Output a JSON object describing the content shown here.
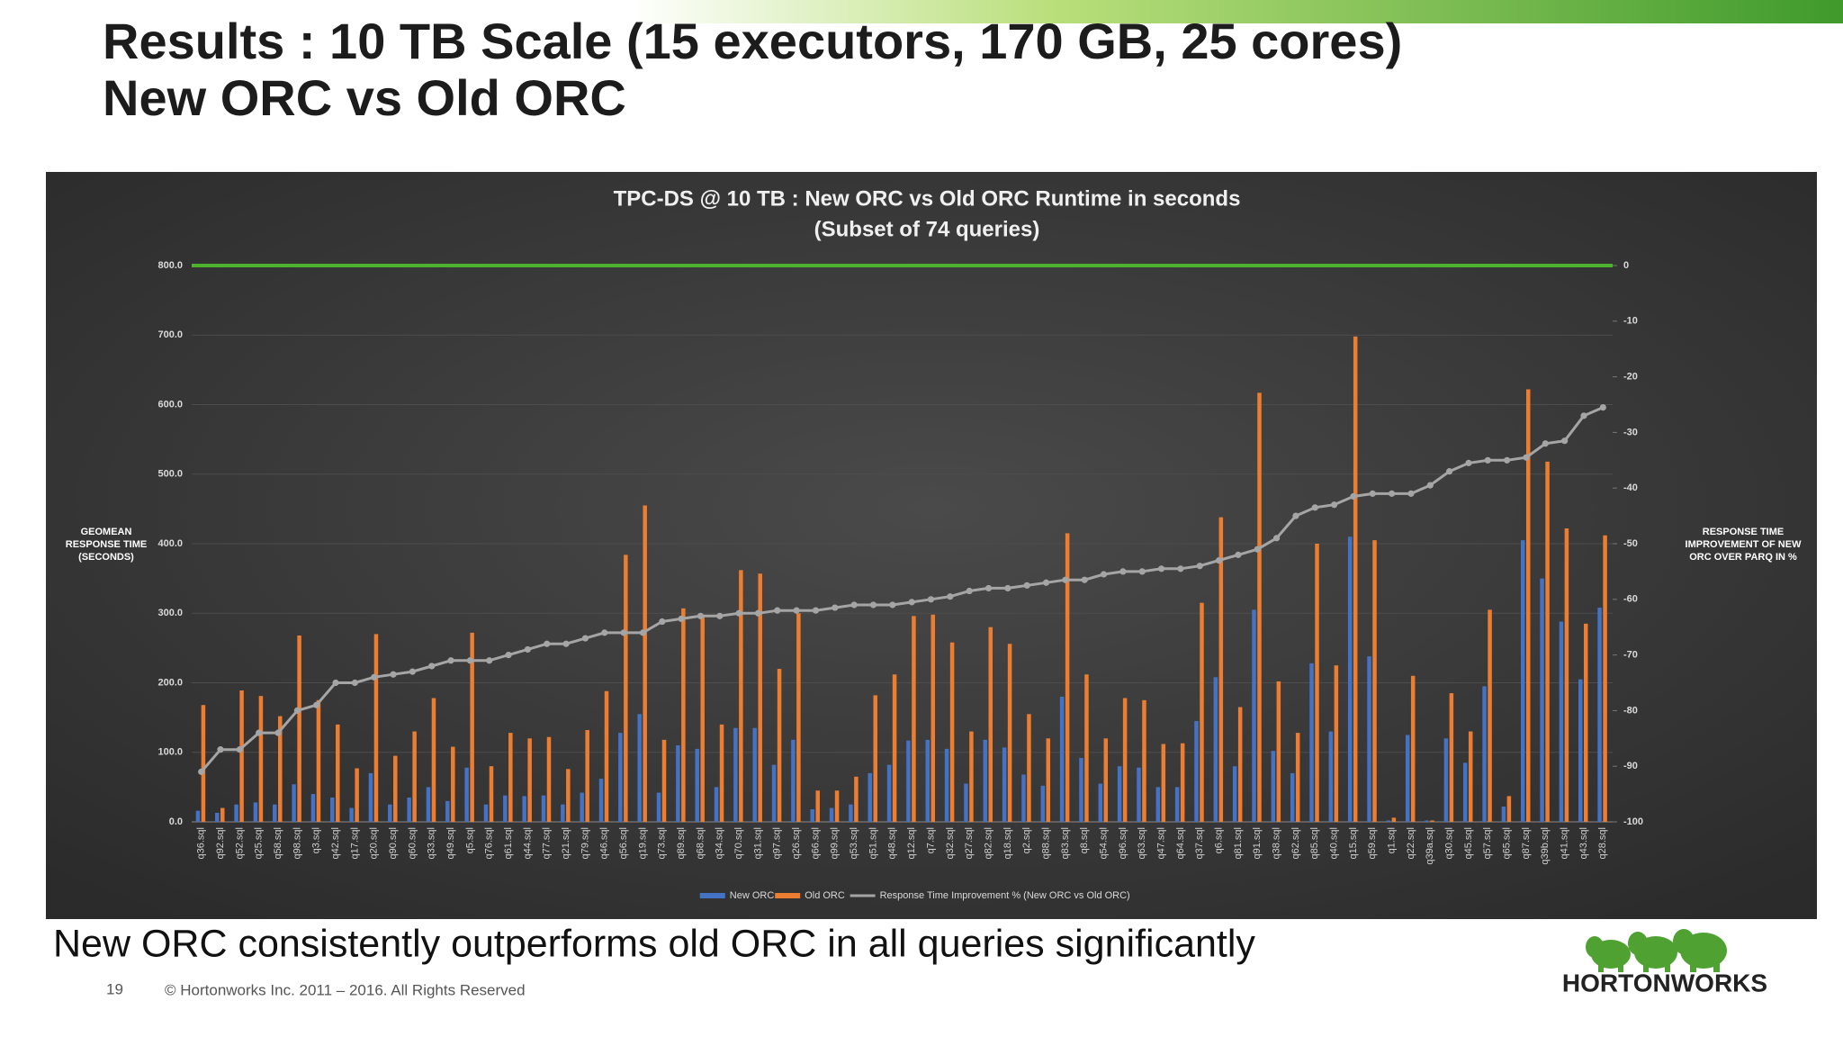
{
  "slide": {
    "title_lines": [
      "Results : 10 TB Scale (15 executors, 170 GB, 25 cores)",
      "New ORC vs Old ORC"
    ],
    "caption": "New ORC consistently outperforms old ORC in all queries significantly",
    "page_number": "19",
    "footer": "© Hortonworks Inc. 2011 – 2016. All Rights Reserved",
    "logo": "HORTONWORKS"
  },
  "chart_data": {
    "type": "bar_line",
    "title": "TPC-DS @ 10 TB : New ORC vs Old ORC Runtime in seconds",
    "subtitle": "(Subset of 74 queries)",
    "y_label": "GEOMEAN RESPONSE TIME (SECONDS)",
    "y2_label": "RESPONSE TIME IMPROVEMENT OF NEW ORC OVER PARQ IN %",
    "categories": [
      "q36.sql",
      "q92.sql",
      "q52.sql",
      "q25.sql",
      "q58.sql",
      "q98.sql",
      "q3.sql",
      "q42.sql",
      "q17.sql",
      "q20.sql",
      "q90.sql",
      "q60.sql",
      "q33.sql",
      "q49.sql",
      "q5.sql",
      "q76.sql",
      "q61.sql",
      "q44.sql",
      "q77.sql",
      "q21.sql",
      "q79.sql",
      "q46.sql",
      "q56.sql",
      "q19.sql",
      "q73.sql",
      "q89.sql",
      "q68.sql",
      "q34.sql",
      "q70.sql",
      "q31.sql",
      "q97.sql",
      "q26.sql",
      "q66.sql",
      "q99.sql",
      "q53.sql",
      "q51.sql",
      "q48.sql",
      "q12.sql",
      "q7.sql",
      "q32.sql",
      "q27.sql",
      "q82.sql",
      "q18.sql",
      "q2.sql",
      "q88.sql",
      "q83.sql",
      "q8.sql",
      "q54.sql",
      "q96.sql",
      "q63.sql",
      "q47.sql",
      "q64.sql",
      "q37.sql",
      "q6.sql",
      "q81.sql",
      "q91.sql",
      "q38.sql",
      "q62.sql",
      "q85.sql",
      "q40.sql",
      "q15.sql",
      "q59.sql",
      "q1.sql",
      "q22.sql",
      "q39a.sql",
      "q30.sql",
      "q45.sql",
      "q57.sql",
      "q65.sql",
      "q87.sql",
      "q39b.sql",
      "q41.sql",
      "q43.sql",
      "q28.sql"
    ],
    "series": [
      {
        "name": "New ORC",
        "type": "bar",
        "color": "#4472c4",
        "values": [
          16,
          13,
          25,
          28,
          25,
          54,
          40,
          35,
          20,
          70,
          25,
          35,
          50,
          30,
          78,
          25,
          38,
          37,
          38,
          25,
          42,
          62,
          128,
          155,
          42,
          110,
          105,
          50,
          135,
          135,
          82,
          118,
          18,
          20,
          25,
          70,
          82,
          117,
          118,
          105,
          55,
          118,
          107,
          68,
          52,
          180,
          92,
          55,
          80,
          78,
          50,
          50,
          145,
          208,
          80,
          305,
          102,
          70,
          228,
          130,
          410,
          238,
          2,
          125,
          2,
          120,
          85,
          195,
          22,
          405,
          350,
          288,
          205,
          308
        ]
      },
      {
        "name": "Old ORC",
        "type": "bar",
        "color": "#ed7d31",
        "values": [
          168,
          20,
          189,
          181,
          152,
          268,
          175,
          140,
          77,
          270,
          95,
          130,
          178,
          108,
          272,
          80,
          128,
          120,
          122,
          76,
          132,
          188,
          384,
          455,
          118,
          307,
          298,
          140,
          362,
          357,
          220,
          300,
          45,
          45,
          65,
          182,
          212,
          296,
          298,
          258,
          130,
          280,
          256,
          155,
          120,
          415,
          212,
          120,
          178,
          175,
          112,
          113,
          315,
          438,
          165,
          617,
          202,
          128,
          400,
          225,
          698,
          405,
          6,
          210,
          2,
          185,
          130,
          305,
          37,
          622,
          518,
          422,
          285,
          412
        ]
      },
      {
        "name": "Response Time Improvement % (New ORC vs Old ORC)",
        "type": "line",
        "axis": "y2",
        "color": "#a5a5a5",
        "values": [
          -91,
          -87,
          -87,
          -84,
          -84,
          -80,
          -79,
          -75,
          -75,
          -74,
          -73.5,
          -73,
          -72,
          -71,
          -71,
          -71,
          -70,
          -69,
          -68,
          -68,
          -67,
          -66,
          -66,
          -66,
          -64,
          -63.5,
          -63,
          -63,
          -62.5,
          -62.5,
          -62,
          -62,
          -62,
          -61.5,
          -61,
          -61,
          -61,
          -60.5,
          -60,
          -59.5,
          -58.5,
          -58,
          -58,
          -57.5,
          -57,
          -56.5,
          -56.5,
          -55.5,
          -55,
          -55,
          -54.5,
          -54.5,
          -54,
          -53,
          -52,
          -51,
          -49,
          -45,
          -43.5,
          -43,
          -41.5,
          -41,
          -41,
          -41,
          -39.5,
          -37,
          -35.5,
          -35,
          -35,
          -34.5,
          -32,
          -31.5,
          -27,
          -25.5
        ]
      }
    ],
    "ylim": [
      0,
      800
    ],
    "yticks": [
      {
        "value": 0,
        "label": "0.0"
      },
      {
        "value": 100,
        "label": "100.0"
      },
      {
        "value": 200,
        "label": "200.0"
      },
      {
        "value": 300,
        "label": "300.0"
      },
      {
        "value": 400,
        "label": "400.0"
      },
      {
        "value": 500,
        "label": "500.0"
      },
      {
        "value": 600,
        "label": "600.0"
      },
      {
        "value": 700,
        "label": "700.0"
      },
      {
        "value": 800,
        "label": "800.0"
      }
    ],
    "y2lim": [
      -100,
      0
    ],
    "y2ticks": [
      0,
      -10,
      -20,
      -30,
      -40,
      -50,
      -60,
      -70,
      -80,
      -90,
      -100
    ],
    "grid": true,
    "legend": "bottom"
  }
}
